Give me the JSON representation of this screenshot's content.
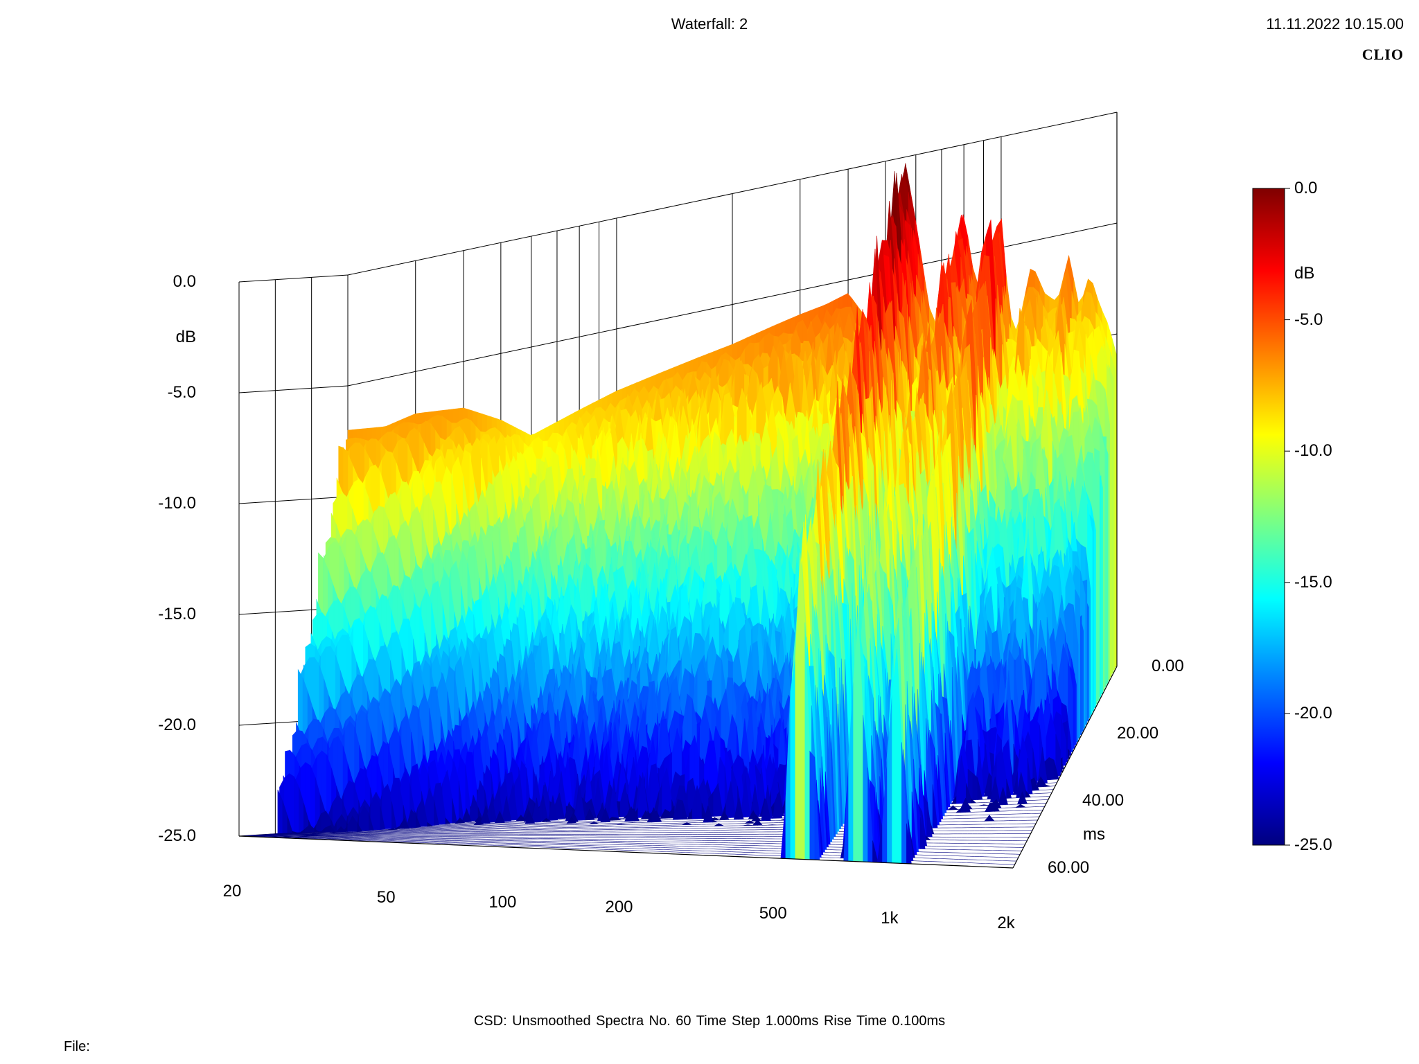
{
  "header": {
    "title": "Waterfall: 2",
    "datetime": "11.11.2022 10.15.00",
    "brand": "CLIO"
  },
  "footer": {
    "settings": "CSD:   Unsmoothed   Spectra No. 60   Time Step 1.000ms   Rise Time 0.100ms",
    "file_label": "File:"
  },
  "colors": {
    "axis": "#000000",
    "background": "#ffffff",
    "colormap": [
      "#00007f",
      "#0000ff",
      "#007fff",
      "#00ffff",
      "#7fff7f",
      "#ffff00",
      "#ff7f00",
      "#ff0000",
      "#7f0000"
    ]
  },
  "chart_data": {
    "type": "waterfall",
    "title": "Waterfall: 2",
    "x_axis": {
      "label": "",
      "scale": "log",
      "range": [
        20,
        2000
      ],
      "ticks": [
        20,
        50,
        100,
        200,
        500,
        1000,
        2000
      ],
      "tick_labels": [
        "20",
        "50",
        "100",
        "200",
        "500",
        "1k",
        "2k"
      ]
    },
    "z_axis": {
      "label": "dB",
      "range": [
        -25,
        0
      ],
      "ticks": [
        0,
        -5,
        -10,
        -15,
        -20,
        -25
      ],
      "tick_labels": [
        "0.0",
        "-5.0",
        "-10.0",
        "-15.0",
        "-20.0",
        "-25.0"
      ]
    },
    "time_axis": {
      "label": "ms",
      "range": [
        0,
        60
      ],
      "ticks": [
        0,
        20,
        40,
        60
      ],
      "tick_labels": [
        "0.00",
        "20.00",
        "40.00",
        "60.00"
      ]
    },
    "colorbar": {
      "label": "dB",
      "range": [
        -25,
        0
      ],
      "ticks": [
        0,
        -5,
        -10,
        -15,
        -20,
        -25
      ],
      "tick_labels": [
        "0.0",
        "-5.0",
        "-10.0",
        "-15.0",
        "-20.0",
        "-25.0"
      ]
    },
    "spectra_count": 60,
    "time_step_ms": 1.0,
    "first_spectrum": {
      "freq_hz": [
        20,
        25,
        30,
        40,
        50,
        60,
        80,
        100,
        130,
        160,
        200,
        250,
        300,
        350,
        400,
        450,
        500,
        530,
        560,
        600,
        650,
        700,
        750,
        800,
        850,
        900,
        950,
        1000,
        1050,
        1100,
        1200,
        1300,
        1400,
        1500,
        1600,
        1700,
        1800,
        1900,
        2000
      ],
      "level_db": [
        -7.0,
        -7.2,
        -6.9,
        -7.1,
        -8.0,
        -9.0,
        -8.3,
        -7.8,
        -7.4,
        -7.1,
        -6.8,
        -6.4,
        -6.1,
        -5.9,
        -5.6,
        -7.0,
        -8.0,
        -4.0,
        0.0,
        -3.0,
        -7.0,
        -8.5,
        -5.0,
        -3.0,
        -6.0,
        -7.0,
        -4.5,
        -3.5,
        -8.0,
        -9.0,
        -6.0,
        -7.5,
        -8.0,
        -6.0,
        -8.5,
        -7.0,
        -8.5,
        -9.5,
        -11.0
      ]
    },
    "peaks": [
      {
        "freq_hz": 560,
        "level_db": 0.0
      },
      {
        "freq_hz": 800,
        "level_db": -3.0
      },
      {
        "freq_hz": 1000,
        "level_db": -3.5
      }
    ]
  }
}
